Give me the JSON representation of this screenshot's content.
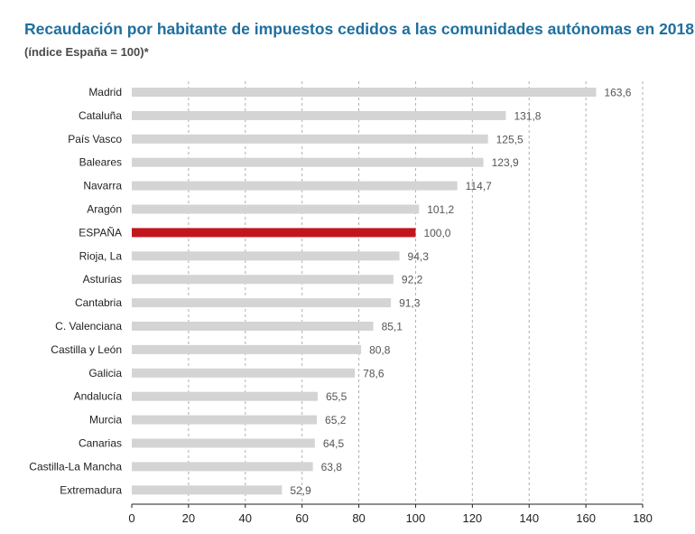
{
  "chart_data": {
    "type": "bar",
    "orientation": "horizontal",
    "title": "Recaudación por habitante de impuestos cedidos a las comunidades autónomas en 2018",
    "subtitle": "(índice España = 100)*",
    "categories": [
      "Madrid",
      "Cataluña",
      "País Vasco",
      "Baleares",
      "Navarra",
      "Aragón",
      "ESPAÑA",
      "Rioja, La",
      "Asturias",
      "Cantabria",
      "C. Valenciana",
      "Castilla y León",
      "Galicia",
      "Andalucía",
      "Murcia",
      "Canarias",
      "Castilla-La Mancha",
      "Extremadura"
    ],
    "values": [
      163.6,
      131.8,
      125.5,
      123.9,
      114.7,
      101.2,
      100.0,
      94.3,
      92.2,
      91.3,
      85.1,
      80.8,
      78.6,
      65.5,
      65.2,
      64.5,
      63.8,
      52.9
    ],
    "value_labels": [
      "163,6",
      "131,8",
      "125,5",
      "123,9",
      "114,7",
      "101,2",
      "100,0",
      "94,3",
      "92,2",
      "91,3",
      "85,1",
      "80,8",
      "78,6",
      "65,5",
      "65,2",
      "64,5",
      "63,8",
      "52,9"
    ],
    "highlight": "ESPAÑA",
    "xlim": [
      0,
      180
    ],
    "xticks": [
      0,
      20,
      40,
      60,
      80,
      100,
      120,
      140,
      160,
      180
    ],
    "grid": "vertical dashed",
    "colors": {
      "bar": "#d4d4d4",
      "highlight": "#c1161c",
      "title": "#1e6f9f",
      "grid": "#b0b0b0"
    }
  }
}
